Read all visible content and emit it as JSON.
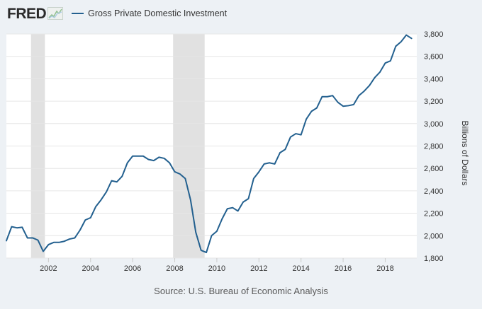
{
  "header": {
    "logo_text": "FRED",
    "legend_label": "Gross Private Domestic Investment"
  },
  "source": "Source: U.S. Bureau of Economic Analysis",
  "colors": {
    "line": "#23608f",
    "recession": "#e1e1e1",
    "grid": "#e6e6e6",
    "plot_bg": "#ffffff"
  },
  "chart_data": {
    "type": "line",
    "title": "",
    "xlabel": "",
    "ylabel": "Billions of Dollars",
    "y_axis_position": "right",
    "xlim": [
      2000.0,
      2019.5
    ],
    "ylim": [
      1800,
      3800
    ],
    "x_ticks": [
      2002,
      2004,
      2006,
      2008,
      2010,
      2012,
      2014,
      2016,
      2018
    ],
    "y_ticks": [
      1800,
      2000,
      2200,
      2400,
      2600,
      2800,
      3000,
      3200,
      3400,
      3600,
      3800
    ],
    "y_tick_labels": [
      "1,800",
      "2,000",
      "2,200",
      "2,400",
      "2,600",
      "2,800",
      "3,000",
      "3,200",
      "3,400",
      "3,600",
      "3,800"
    ],
    "grid": true,
    "recessions": [
      [
        2001.17,
        2001.83
      ],
      [
        2007.92,
        2009.42
      ]
    ],
    "series": [
      {
        "name": "Gross Private Domestic Investment",
        "x": [
          2000.0,
          2000.25,
          2000.5,
          2000.75,
          2001.0,
          2001.25,
          2001.5,
          2001.75,
          2002.0,
          2002.25,
          2002.5,
          2002.75,
          2003.0,
          2003.25,
          2003.5,
          2003.75,
          2004.0,
          2004.25,
          2004.5,
          2004.75,
          2005.0,
          2005.25,
          2005.5,
          2005.75,
          2006.0,
          2006.25,
          2006.5,
          2006.75,
          2007.0,
          2007.25,
          2007.5,
          2007.75,
          2008.0,
          2008.25,
          2008.5,
          2008.75,
          2009.0,
          2009.25,
          2009.5,
          2009.75,
          2010.0,
          2010.25,
          2010.5,
          2010.75,
          2011.0,
          2011.25,
          2011.5,
          2011.75,
          2012.0,
          2012.25,
          2012.5,
          2012.75,
          2013.0,
          2013.25,
          2013.5,
          2013.75,
          2014.0,
          2014.25,
          2014.5,
          2014.75,
          2015.0,
          2015.25,
          2015.5,
          2015.75,
          2016.0,
          2016.25,
          2016.5,
          2016.75,
          2017.0,
          2017.25,
          2017.5,
          2017.75,
          2018.0,
          2018.25,
          2018.5,
          2018.75,
          2019.0,
          2019.25
        ],
        "values": [
          1955,
          2080,
          2070,
          2075,
          1980,
          1980,
          1960,
          1860,
          1920,
          1940,
          1940,
          1950,
          1970,
          1980,
          2050,
          2140,
          2160,
          2260,
          2320,
          2390,
          2490,
          2480,
          2530,
          2650,
          2710,
          2710,
          2710,
          2680,
          2670,
          2700,
          2690,
          2650,
          2570,
          2550,
          2510,
          2320,
          2030,
          1870,
          1850,
          2000,
          2040,
          2150,
          2240,
          2250,
          2220,
          2300,
          2330,
          2510,
          2570,
          2640,
          2650,
          2640,
          2740,
          2770,
          2880,
          2910,
          2900,
          3040,
          3110,
          3140,
          3240,
          3240,
          3250,
          3190,
          3155,
          3160,
          3170,
          3250,
          3290,
          3340,
          3410,
          3460,
          3540,
          3560,
          3690,
          3730,
          3790,
          3760
        ]
      }
    ]
  }
}
